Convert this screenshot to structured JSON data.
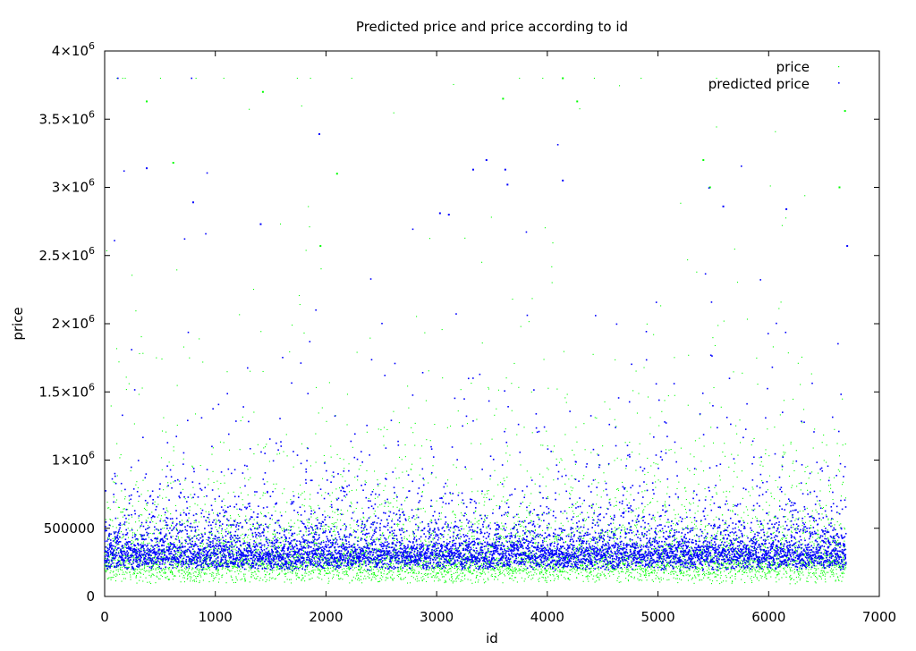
{
  "chart_data": {
    "type": "scatter",
    "title": "Predicted price and price according to id",
    "xlabel": "id",
    "ylabel": "price",
    "xlim": [
      0,
      7000
    ],
    "ylim": [
      0,
      4000000
    ],
    "xticks": [
      {
        "value": 0,
        "label": "0"
      },
      {
        "value": 1000,
        "label": "1000"
      },
      {
        "value": 2000,
        "label": "2000"
      },
      {
        "value": 3000,
        "label": "3000"
      },
      {
        "value": 4000,
        "label": "4000"
      },
      {
        "value": 5000,
        "label": "5000"
      },
      {
        "value": 6000,
        "label": "6000"
      },
      {
        "value": 7000,
        "label": "7000"
      }
    ],
    "yticks": [
      {
        "value": 0,
        "base": "0",
        "exp": ""
      },
      {
        "value": 500000,
        "base": "500000",
        "exp": ""
      },
      {
        "value": 1000000,
        "base": "1×10",
        "exp": "6"
      },
      {
        "value": 1500000,
        "base": "1.5×10",
        "exp": "6"
      },
      {
        "value": 2000000,
        "base": "2×10",
        "exp": "6"
      },
      {
        "value": 2500000,
        "base": "2.5×10",
        "exp": "6"
      },
      {
        "value": 3000000,
        "base": "3×10",
        "exp": "6"
      },
      {
        "value": 3500000,
        "base": "3.5×10",
        "exp": "6"
      },
      {
        "value": 4000000,
        "base": "4×10",
        "exp": "6"
      }
    ],
    "grid": false,
    "legend_position": "top-right",
    "point_count_per_series": 6700,
    "series": [
      {
        "name": "price",
        "color": "#00ff00",
        "marker": "dot",
        "id_range": [
          0,
          6700
        ],
        "typical_range": [
          100000,
          1000000
        ],
        "outliers": [
          {
            "x": 380,
            "y": 3630000
          },
          {
            "x": 620,
            "y": 3180000
          },
          {
            "x": 1430,
            "y": 3700000
          },
          {
            "x": 1950,
            "y": 2570000
          },
          {
            "x": 2100,
            "y": 3100000
          },
          {
            "x": 3600,
            "y": 3650000
          },
          {
            "x": 4140,
            "y": 3800000
          },
          {
            "x": 4270,
            "y": 3630000
          },
          {
            "x": 5410,
            "y": 3200000
          },
          {
            "x": 5470,
            "y": 3000000
          },
          {
            "x": 6640,
            "y": 3000000
          },
          {
            "x": 6690,
            "y": 3560000
          }
        ]
      },
      {
        "name": "predicted price",
        "color": "#0000ff",
        "marker": "dot",
        "id_range": [
          0,
          6700
        ],
        "typical_range": [
          180000,
          900000
        ],
        "outliers": [
          {
            "x": 380,
            "y": 3140000
          },
          {
            "x": 800,
            "y": 2890000
          },
          {
            "x": 1410,
            "y": 2730000
          },
          {
            "x": 1940,
            "y": 3390000
          },
          {
            "x": 3030,
            "y": 2810000
          },
          {
            "x": 3110,
            "y": 2800000
          },
          {
            "x": 3330,
            "y": 3130000
          },
          {
            "x": 3450,
            "y": 3200000
          },
          {
            "x": 3620,
            "y": 3130000
          },
          {
            "x": 3640,
            "y": 3020000
          },
          {
            "x": 4140,
            "y": 3050000
          },
          {
            "x": 5590,
            "y": 2860000
          },
          {
            "x": 6160,
            "y": 2840000
          },
          {
            "x": 6710,
            "y": 2570000
          }
        ]
      }
    ]
  }
}
